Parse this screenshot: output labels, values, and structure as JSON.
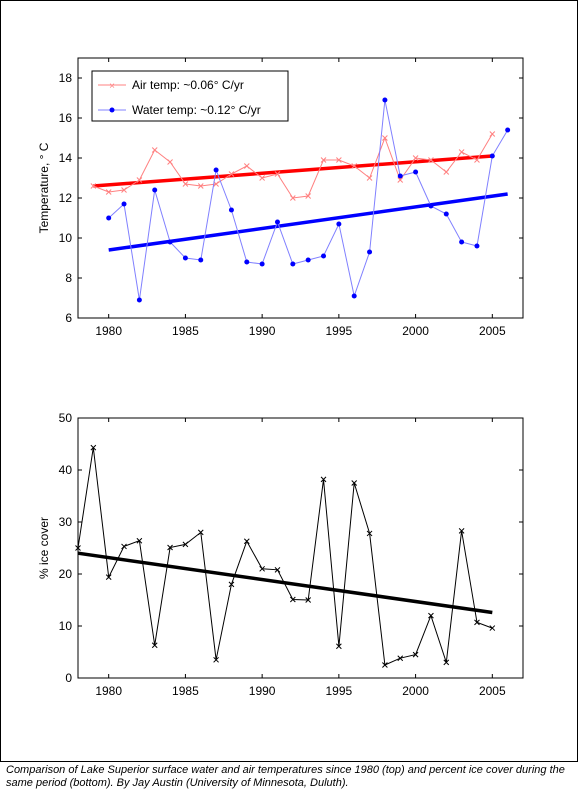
{
  "caption": "Comparison of Lake Superior surface water and air temperatures since 1980 (top) and percent ice cover during the same period (bottom). By Jay Austin (University of Minnesota, Duluth).",
  "chart_data": [
    {
      "type": "line",
      "ylabel": "Temperature, ° C",
      "xlim": [
        1978,
        2007
      ],
      "ylim": [
        6,
        19
      ],
      "xticks": [
        1980,
        1985,
        1990,
        1995,
        2000,
        2005
      ],
      "yticks": [
        6,
        8,
        10,
        12,
        14,
        16,
        18
      ],
      "legend_position": "top-left",
      "series": [
        {
          "name": "Air temp: ~0.06° C/yr",
          "color": "#ff8080",
          "x": [
            1979,
            1980,
            1981,
            1982,
            1983,
            1984,
            1985,
            1986,
            1987,
            1988,
            1989,
            1990,
            1991,
            1992,
            1993,
            1994,
            1995,
            1996,
            1997,
            1998,
            1999,
            2000,
            2001,
            2002,
            2003,
            2004,
            2005
          ],
          "y": [
            12.6,
            12.3,
            12.4,
            12.9,
            14.4,
            13.8,
            12.7,
            12.6,
            12.7,
            13.2,
            13.6,
            13.0,
            13.2,
            12.0,
            12.1,
            13.9,
            13.9,
            13.6,
            13.0,
            15.0,
            12.9,
            14.0,
            13.9,
            13.3,
            14.3,
            13.9,
            15.2
          ],
          "trend": {
            "x": [
              1979,
              2005
            ],
            "y": [
              12.6,
              14.1
            ],
            "color": "#ff0000"
          }
        },
        {
          "name": "Water temp: ~0.12° C/yr",
          "color": "#8080ff",
          "x": [
            1980,
            1981,
            1982,
            1983,
            1984,
            1985,
            1986,
            1987,
            1988,
            1989,
            1990,
            1991,
            1992,
            1993,
            1994,
            1995,
            1996,
            1997,
            1998,
            1999,
            2000,
            2001,
            2002,
            2003,
            2004,
            2005,
            2006
          ],
          "y": [
            11.0,
            11.7,
            6.9,
            12.4,
            9.8,
            9.0,
            8.9,
            13.4,
            11.4,
            8.8,
            8.7,
            10.8,
            8.7,
            8.9,
            9.1,
            10.7,
            7.1,
            9.3,
            16.9,
            13.1,
            13.3,
            11.6,
            11.2,
            9.8,
            9.6,
            14.1,
            15.4
          ],
          "trend": {
            "x": [
              1980,
              2006
            ],
            "y": [
              9.4,
              12.2
            ],
            "color": "#0000ff"
          }
        }
      ]
    },
    {
      "type": "line",
      "ylabel": "% ice cover",
      "xlim": [
        1978,
        2007
      ],
      "ylim": [
        0,
        50
      ],
      "xticks": [
        1980,
        1985,
        1990,
        1995,
        2000,
        2005
      ],
      "yticks": [
        0,
        10,
        20,
        30,
        40,
        50
      ],
      "series": [
        {
          "color": "#000000",
          "x": [
            1978,
            1979,
            1980,
            1981,
            1982,
            1983,
            1984,
            1985,
            1986,
            1987,
            1988,
            1989,
            1990,
            1991,
            1992,
            1993,
            1994,
            1995,
            1996,
            1997,
            1998,
            1999,
            2000,
            2001,
            2002,
            2003,
            2004,
            2005
          ],
          "y": [
            25.0,
            44.3,
            19.4,
            25.3,
            26.4,
            6.3,
            25.1,
            25.7,
            28.0,
            3.5,
            18.0,
            26.3,
            21.0,
            20.8,
            15.1,
            15.0,
            38.2,
            6.1,
            37.5,
            27.8,
            2.5,
            3.8,
            4.5,
            12.0,
            3.0,
            28.3,
            10.7,
            9.6
          ],
          "trend": {
            "x": [
              1978,
              2005
            ],
            "y": [
              24.0,
              12.6
            ],
            "color": "#000000"
          }
        }
      ]
    }
  ]
}
